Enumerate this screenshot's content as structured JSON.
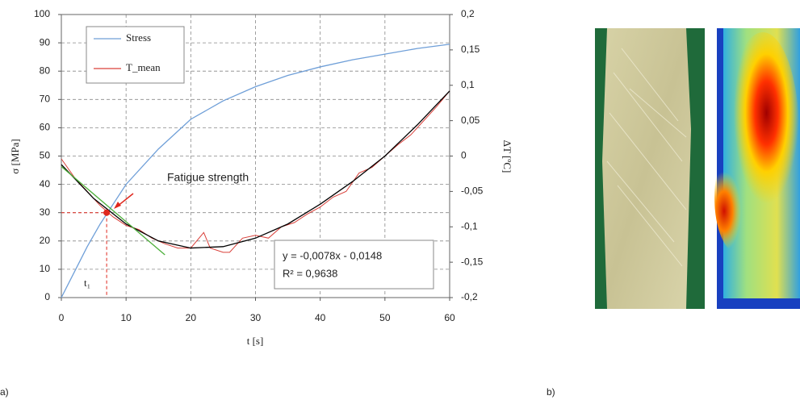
{
  "chart_data": {
    "type": "line",
    "ylabel": "σ [MPa]",
    "y2label": "ΔT [ºC]",
    "xlabel": "t [s]",
    "xlim": [
      0,
      60
    ],
    "xticks": [
      0,
      10,
      20,
      30,
      40,
      50,
      60
    ],
    "ylim": [
      0,
      100
    ],
    "yticks": [
      0,
      10,
      20,
      30,
      40,
      50,
      60,
      70,
      80,
      90,
      100
    ],
    "y2lim": [
      -0.2,
      0.2
    ],
    "y2ticks": [
      {
        "value": -0.2,
        "label": "-0,2"
      },
      {
        "value": -0.15,
        "label": "-0,15"
      },
      {
        "value": -0.1,
        "label": "-0,1"
      },
      {
        "value": -0.05,
        "label": "-0,05"
      },
      {
        "value": 0,
        "label": "0"
      },
      {
        "value": 0.05,
        "label": "0,05"
      },
      {
        "value": 0.1,
        "label": "0,1"
      },
      {
        "value": 0.15,
        "label": "0,15"
      },
      {
        "value": 0.2,
        "label": "0,2"
      }
    ],
    "grid": true,
    "series": [
      {
        "name": "Stress",
        "color": "#6f9fd8",
        "x": [
          0,
          2,
          4,
          6,
          8,
          10,
          15,
          20,
          25,
          30,
          35,
          40,
          45,
          50,
          55,
          60
        ],
        "values": [
          0,
          9,
          18,
          26,
          33,
          40,
          52.5,
          63,
          69.5,
          74.5,
          78.5,
          81.5,
          84,
          86,
          88,
          89.5
        ]
      },
      {
        "name": "T_mean",
        "color": "#d9403a",
        "axis": "y2",
        "x": [
          0,
          2,
          4,
          6,
          8,
          10,
          12,
          14,
          16,
          18,
          20,
          22,
          23,
          25,
          26,
          28,
          30,
          32,
          34,
          36,
          38,
          40,
          42,
          44,
          46,
          48,
          50,
          52,
          54,
          56,
          58,
          60
        ],
        "values": [
          -0.004,
          -0.03,
          -0.05,
          -0.07,
          -0.086,
          -0.098,
          -0.104,
          -0.116,
          -0.124,
          -0.13,
          -0.13,
          -0.108,
          -0.13,
          -0.136,
          -0.136,
          -0.116,
          -0.112,
          -0.116,
          -0.1,
          -0.094,
          -0.082,
          -0.072,
          -0.058,
          -0.05,
          -0.024,
          -0.016,
          0,
          0.016,
          0.03,
          0.05,
          0.07,
          0.092
        ]
      },
      {
        "color": "#000000",
        "axis": "y2",
        "x": [
          0,
          5,
          10,
          15,
          20,
          25,
          30,
          35,
          40,
          45,
          50,
          55,
          60
        ],
        "values": [
          -0.012,
          -0.06,
          -0.096,
          -0.12,
          -0.13,
          -0.128,
          -0.116,
          -0.096,
          -0.068,
          -0.036,
          0,
          0.044,
          0.092
        ]
      },
      {
        "color": "#4caf3a",
        "axis": "y2",
        "x": [
          0,
          16
        ],
        "values": [
          -0.0148,
          -0.1396
        ]
      }
    ],
    "marker": {
      "x": 7,
      "y": 30,
      "color": "#e0281e",
      "label": "t₁"
    },
    "annotations": [
      "Fatigue strength",
      "y = -0,0078x - 0,0148",
      "R² = 0,9638"
    ],
    "panels": [
      "a)",
      "b)"
    ]
  }
}
